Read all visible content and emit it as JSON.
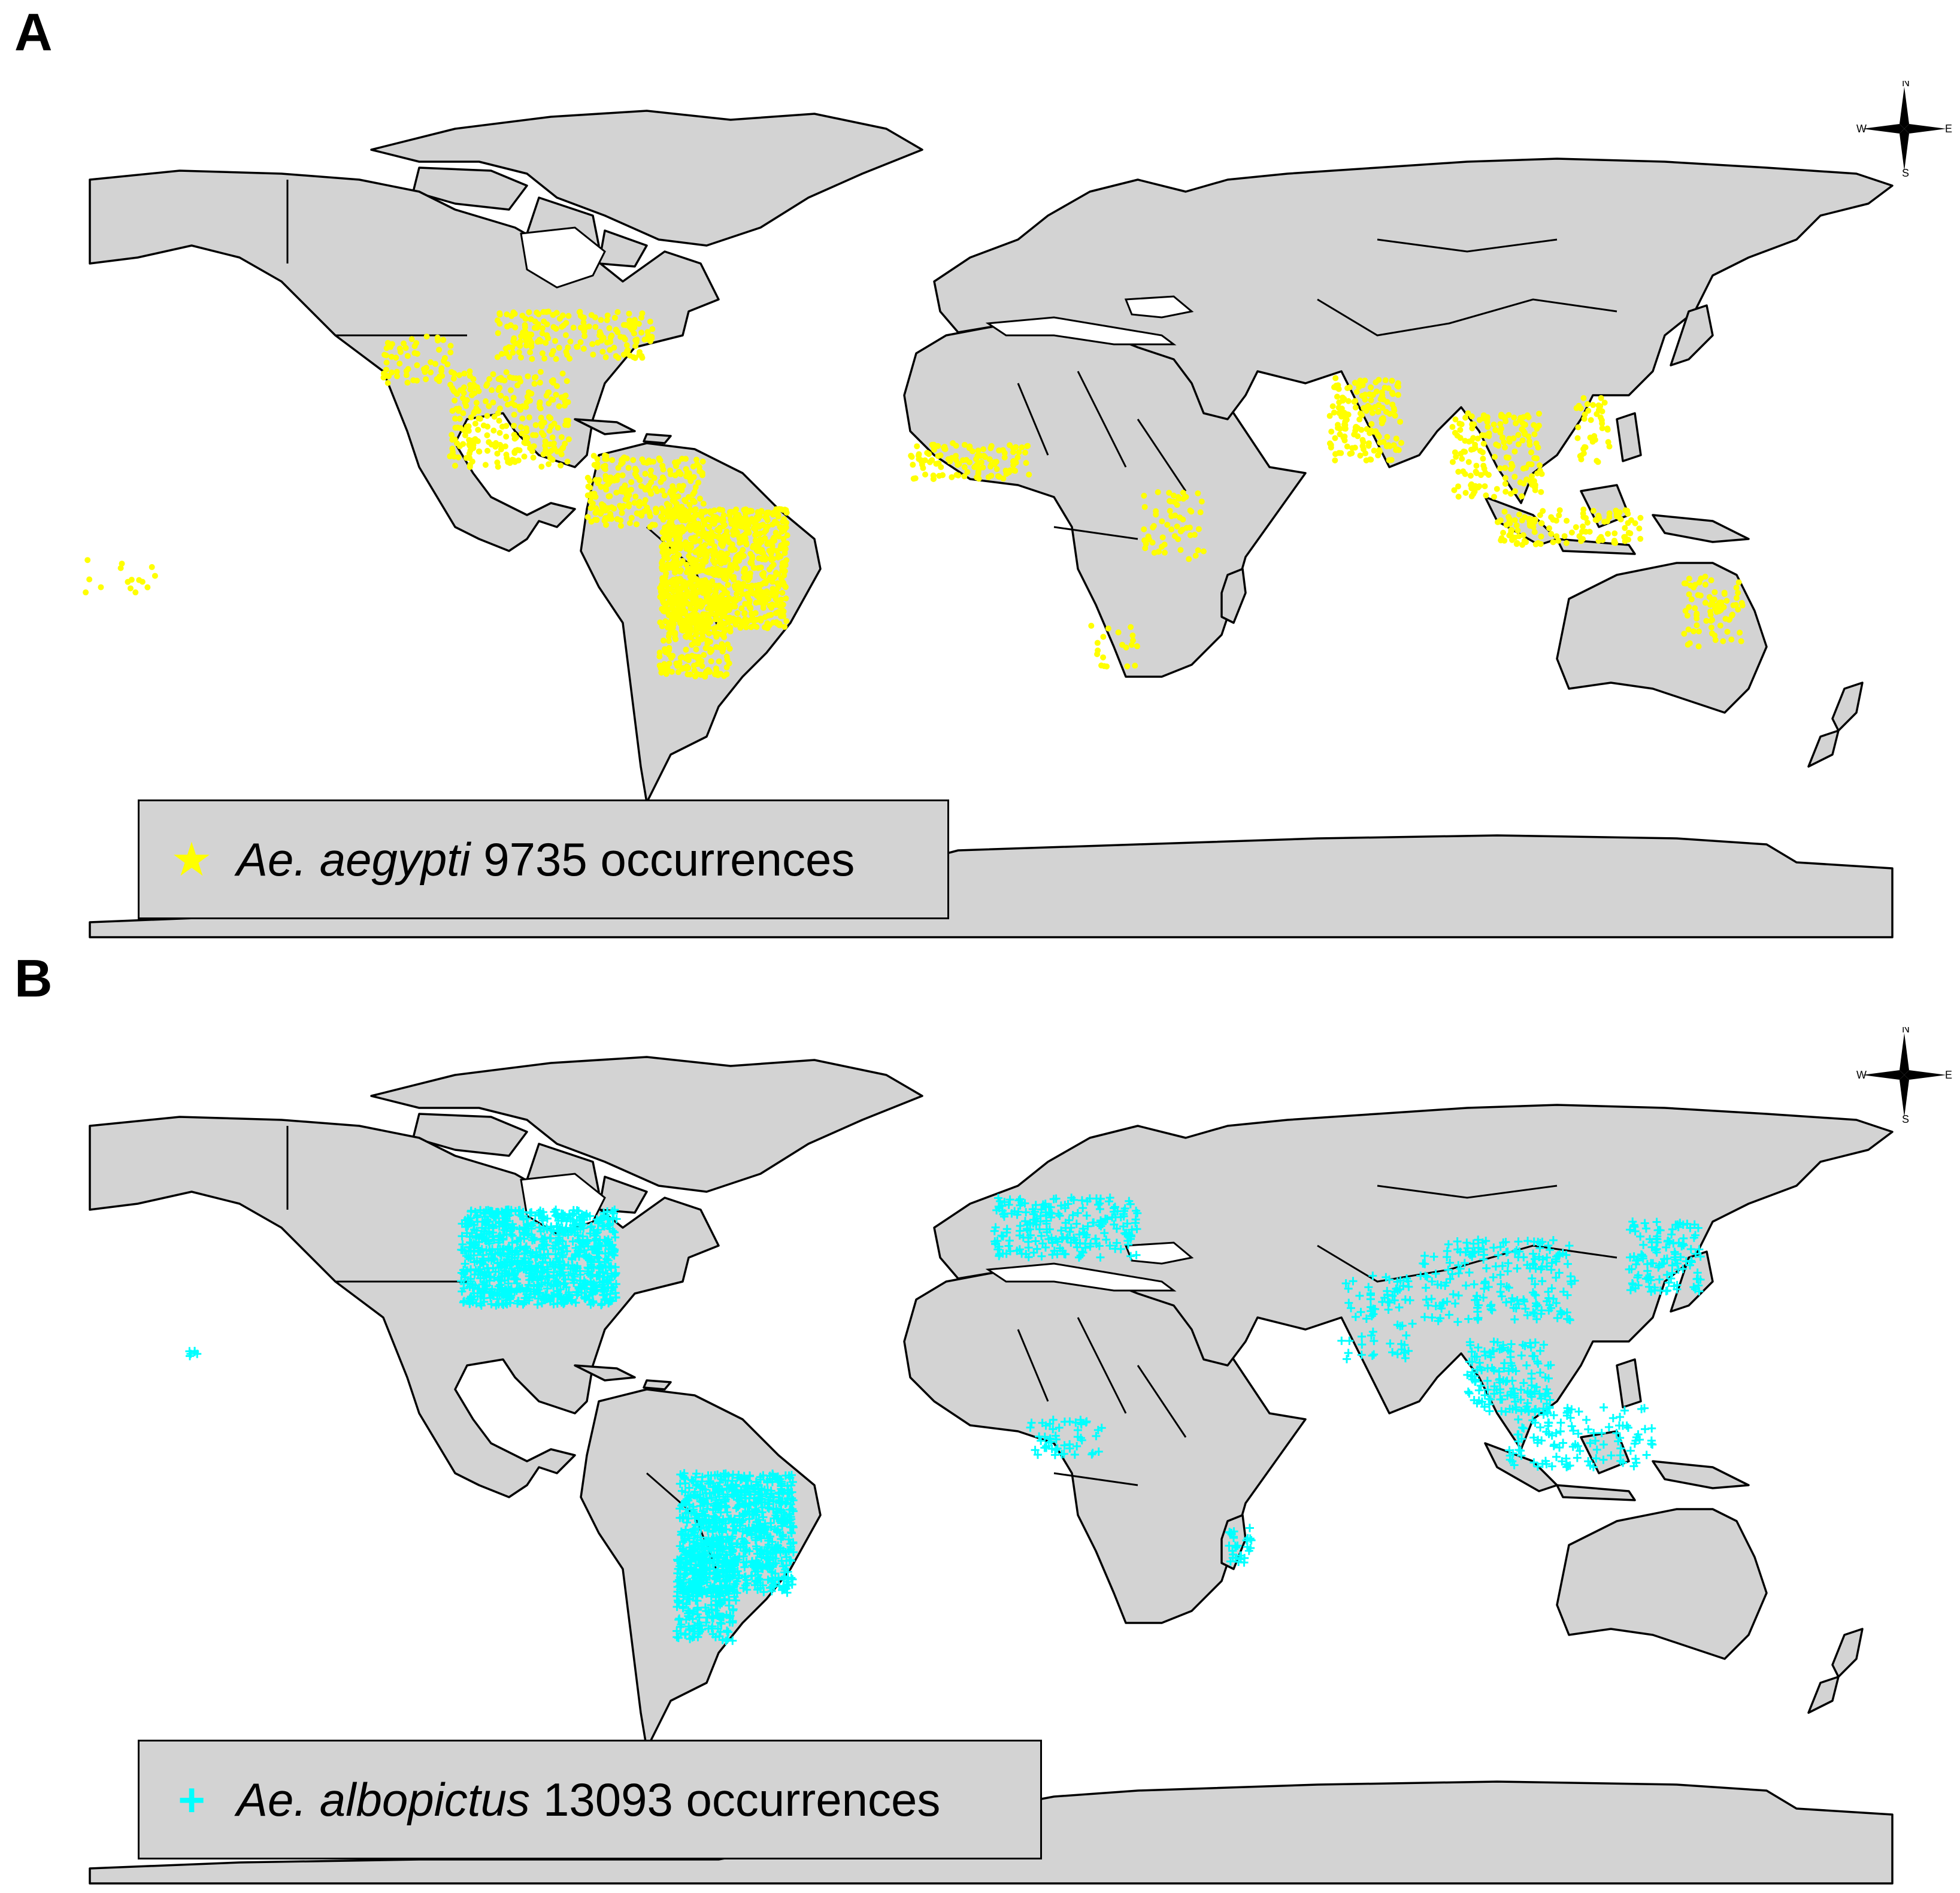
{
  "panels": [
    {
      "letter": "A",
      "legend": {
        "species": "Ae. aegypti",
        "text": "9735 occurrences",
        "symbol": "★",
        "color": "#ffff00"
      }
    },
    {
      "letter": "B",
      "legend": {
        "species": "Ae. albopictus",
        "text": "13093 occurrences",
        "symbol": "+",
        "color": "#00ffff"
      }
    }
  ],
  "compass": {
    "n": "N",
    "s": "S",
    "e": "E",
    "w": "W"
  },
  "colors": {
    "land": "#d3d3d3",
    "border": "#000000",
    "aegypti": "#ffff00",
    "albopictus": "#00ffff"
  }
}
